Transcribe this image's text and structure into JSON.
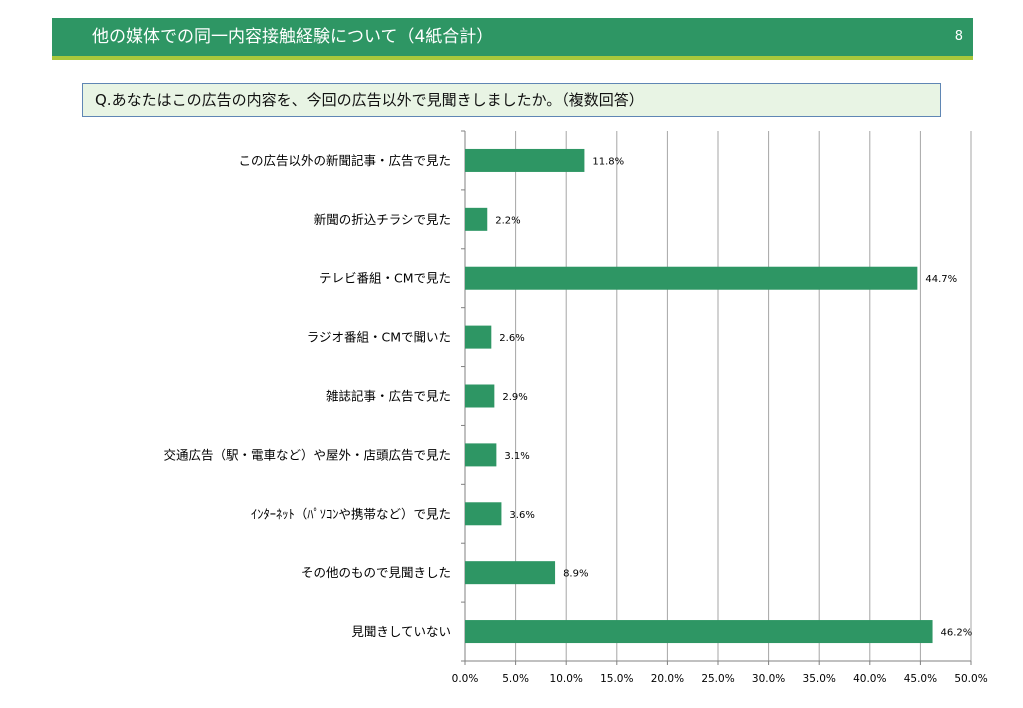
{
  "header": {
    "title": "他の媒体での同一内容接触経験について（4紙合計）",
    "page_number": "8"
  },
  "question": {
    "text": "Q.あなたはこの広告の内容を、今回の広告以外で見聞きしましたか。（複数回答）"
  },
  "colors": {
    "header_bg": "#2e9664",
    "header_underline": "#a8c83c",
    "question_bg": "#e8f4e4",
    "question_border": "#5f86b4",
    "bar": "#2e9664",
    "grid": "#a6a6a6"
  },
  "chart_data": {
    "type": "bar",
    "orientation": "horizontal",
    "categories": [
      "この広告以外の新聞記事・広告で見た",
      "新聞の折込チラシで見た",
      "テレビ番組・CMで見た",
      "ラジオ番組・CMで聞いた",
      "雑誌記事・広告で見た",
      "交通広告（駅・電車など）や屋外・店頭広告で見た",
      "ｲﾝﾀｰﾈｯﾄ（ﾊﾟｿｺﾝや携帯など）で見た",
      "その他のもので見聞きした",
      "見聞きしていない"
    ],
    "values": [
      11.8,
      2.2,
      44.7,
      2.6,
      2.9,
      3.1,
      3.6,
      8.9,
      46.2
    ],
    "value_labels": [
      "11.8%",
      "2.2%",
      "44.7%",
      "2.6%",
      "2.9%",
      "3.1%",
      "3.6%",
      "8.9%",
      "46.2%"
    ],
    "xlim": [
      0,
      50
    ],
    "x_ticks": [
      "0.0%",
      "5.0%",
      "10.0%",
      "15.0%",
      "20.0%",
      "25.0%",
      "30.0%",
      "35.0%",
      "40.0%",
      "45.0%",
      "50.0%"
    ],
    "grid": true,
    "legend": "none"
  }
}
